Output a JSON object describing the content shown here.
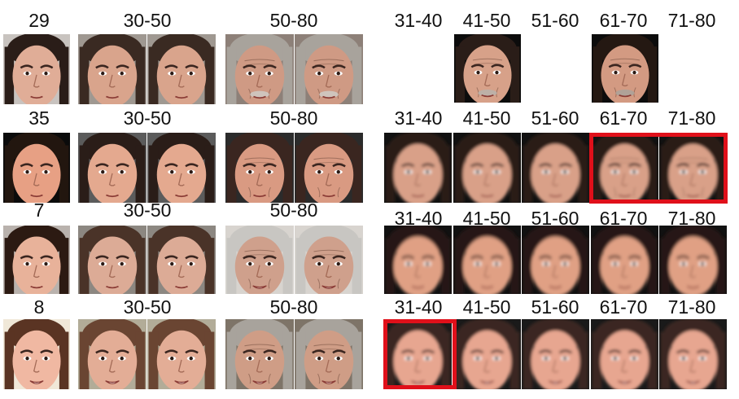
{
  "rows": [
    {
      "input_label": "29",
      "group_labels": [
        "30-50",
        "50-80"
      ],
      "decade_labels": [
        "31-40",
        "41-50",
        "51-60",
        "61-70",
        "71-80"
      ]
    },
    {
      "input_label": "35",
      "group_labels": [
        "30-50",
        "50-80"
      ],
      "decade_labels": [
        "31-40",
        "41-50",
        "51-60",
        "61-70",
        "71-80"
      ]
    },
    {
      "input_label": "7",
      "group_labels": [
        "30-50",
        "50-80"
      ],
      "decade_labels": [
        "31-40",
        "41-50",
        "51-60",
        "61-70",
        "71-80"
      ]
    },
    {
      "input_label": "8",
      "group_labels": [
        "30-50",
        "50-80"
      ],
      "decade_labels": [
        "31-40",
        "41-50",
        "51-60",
        "61-70",
        "71-80"
      ]
    }
  ],
  "colors": {
    "highlight": "#e0101a",
    "skin_young": "#e3a98f",
    "skin_old": "#c9957f",
    "hair_dark": "#2a1d18",
    "hair_grey": "#a8a39c"
  }
}
